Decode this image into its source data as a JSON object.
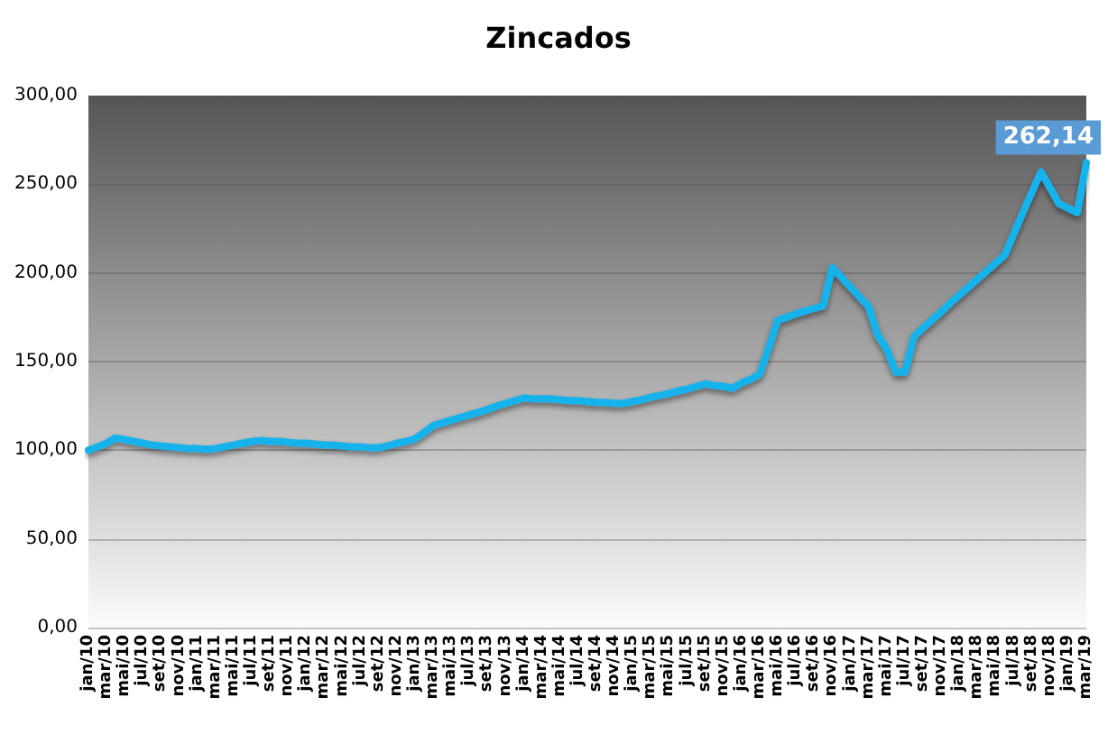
{
  "chart_data": {
    "type": "line",
    "title": "Zincados",
    "categories": [
      "jan/10",
      null,
      "mar/10",
      null,
      "mai/10",
      null,
      "jul/10",
      null,
      "set/10",
      null,
      "nov/10",
      null,
      "jan/11",
      null,
      "mar/11",
      null,
      "mai/11",
      null,
      "jul/11",
      null,
      "set/11",
      null,
      "nov/11",
      null,
      "jan/12",
      null,
      "mar/12",
      null,
      "mai/12",
      null,
      "jul/12",
      null,
      "set/12",
      null,
      "nov/12",
      null,
      "jan/13",
      null,
      "mar/13",
      null,
      "mai/13",
      null,
      "jul/13",
      null,
      "set/13",
      null,
      "nov/13",
      null,
      "jan/14",
      null,
      "mar/14",
      null,
      "mai/14",
      null,
      "jul/14",
      null,
      "set/14",
      null,
      "nov/14",
      null,
      "jan/15",
      null,
      "mar/15",
      null,
      "mai/15",
      null,
      "jul/15",
      null,
      "set/15",
      null,
      "nov/15",
      null,
      "jan/16",
      null,
      "mar/16",
      null,
      "mai/16",
      null,
      "jul/16",
      null,
      "set/16",
      null,
      "nov/16",
      null,
      "jan/17",
      null,
      "mar/17",
      null,
      "mai/17",
      null,
      "jul/17",
      null,
      "set/17",
      null,
      "nov/17",
      null,
      "jan/18",
      null,
      "mar/18",
      null,
      "mai/18",
      null,
      "jul/18",
      null,
      "set/18",
      null,
      "nov/18",
      null,
      "jan/19",
      null,
      "mar/19"
    ],
    "series": [
      {
        "color": "#17b2ec",
        "values": [
          100,
          102,
          104,
          107,
          106,
          105,
          104,
          103,
          102.5,
          102,
          101.5,
          101,
          101,
          100.5,
          101,
          102,
          103,
          104,
          105,
          105.5,
          105,
          105,
          104.5,
          104,
          104,
          103.5,
          103,
          103,
          102.5,
          102,
          102,
          101.5,
          101.5,
          102.5,
          104,
          105,
          106.5,
          110,
          114,
          115.5,
          117,
          118.5,
          120,
          121.5,
          123,
          125,
          126.5,
          128,
          129.5,
          129,
          129,
          129,
          128.5,
          128,
          128,
          127.5,
          127,
          127,
          126.5,
          126.5,
          127.5,
          128.5,
          130,
          131,
          132,
          133.5,
          134.5,
          136,
          137.5,
          136.5,
          136,
          135,
          138,
          140,
          143,
          158,
          173.5,
          175,
          177,
          178.5,
          180,
          181.5,
          203,
          197.5,
          192,
          186.5,
          181,
          165,
          157,
          144,
          144,
          164,
          169,
          173.5,
          178,
          183,
          187.5,
          192,
          196.5,
          201,
          205.5,
          210,
          222,
          234,
          245.5,
          257,
          248,
          239,
          236.5,
          234,
          262.14
        ],
        "value_labels": [
          null,
          null,
          null,
          null,
          null,
          null,
          null,
          null,
          null,
          null,
          null,
          null,
          null,
          null,
          null,
          null,
          null,
          null,
          null,
          null,
          null,
          null,
          null,
          null,
          null,
          null,
          null,
          null,
          null,
          null,
          null,
          null,
          null,
          null,
          null,
          null,
          null,
          null,
          null,
          null,
          null,
          null,
          null,
          null,
          null,
          null,
          null,
          null,
          null,
          null,
          null,
          null,
          null,
          null,
          null,
          null,
          null,
          null,
          null,
          null,
          null,
          null,
          null,
          null,
          null,
          null,
          null,
          null,
          null,
          null,
          null,
          null,
          null,
          null,
          null,
          null,
          null,
          null,
          null,
          null,
          null,
          null,
          null,
          null,
          null,
          null,
          null,
          null,
          null,
          null,
          null,
          null,
          null,
          null,
          null,
          null,
          null,
          null,
          null,
          null,
          null,
          null,
          null,
          null,
          null,
          null,
          null,
          null,
          null,
          null,
          "262,14"
        ]
      }
    ],
    "ylim": [
      0,
      300
    ],
    "yticks": [
      {
        "value": 0,
        "label": "0,00"
      },
      {
        "value": 50,
        "label": "50,00"
      },
      {
        "value": 100,
        "label": "100,00"
      },
      {
        "value": 150,
        "label": "150,00"
      },
      {
        "value": 200,
        "label": "200,00"
      },
      {
        "value": 250,
        "label": "250,00"
      },
      {
        "value": 300,
        "label": "300,00"
      }
    ],
    "grid": "y",
    "marker": "none",
    "line_style": "solid"
  }
}
